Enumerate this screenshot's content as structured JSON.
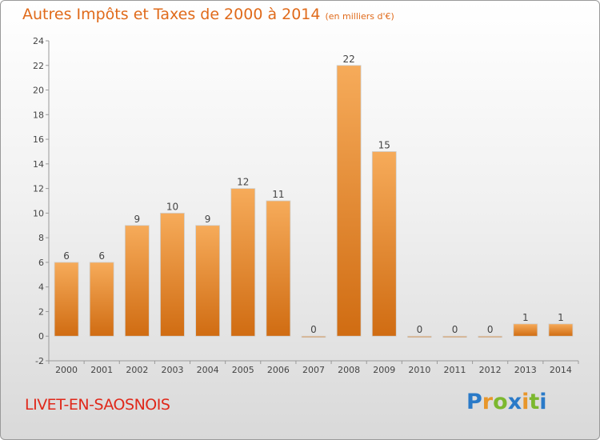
{
  "chart_data": {
    "type": "bar",
    "title": "Autres Impôts et Taxes de 2000 à 2014",
    "subtitle": "(en milliers d'€)",
    "categories": [
      "2000",
      "2001",
      "2002",
      "2003",
      "2004",
      "2005",
      "2006",
      "2007",
      "2008",
      "2009",
      "2010",
      "2011",
      "2012",
      "2013",
      "2014"
    ],
    "values": [
      6,
      6,
      9,
      10,
      9,
      12,
      11,
      0,
      22,
      15,
      0,
      0,
      0,
      1,
      1
    ],
    "ylim": [
      -2,
      24
    ],
    "yticks": [
      -2,
      0,
      2,
      4,
      6,
      8,
      10,
      12,
      14,
      16,
      18,
      20,
      22,
      24
    ],
    "grid": false,
    "bar_color": "#e8842a",
    "bar_color_light": "#f6ab5a",
    "bar_color_dark": "#d06c12"
  },
  "footer": {
    "commune": "LIVET-EN-SAOSNOIS",
    "logo": "Proxiti"
  }
}
